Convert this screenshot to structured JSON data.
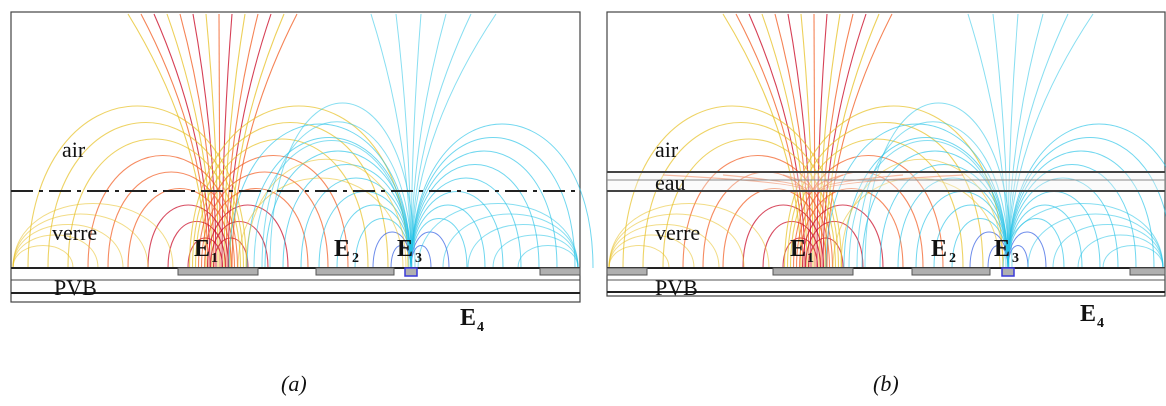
{
  "figure": {
    "panels": [
      {
        "id": "a",
        "caption": "(a)",
        "layers": [
          "air",
          "verre",
          "PVB"
        ],
        "electrodes": [
          {
            "letter": "E",
            "sub": "1"
          },
          {
            "letter": "E",
            "sub": "2"
          },
          {
            "letter": "E",
            "sub": "3"
          },
          {
            "letter": "E",
            "sub": "4"
          }
        ]
      },
      {
        "id": "b",
        "caption": "(b)",
        "layers": [
          "air",
          "eau",
          "verre",
          "PVB"
        ],
        "electrodes": [
          {
            "letter": "E",
            "sub": "1"
          },
          {
            "letter": "E",
            "sub": "2"
          },
          {
            "letter": "E",
            "sub": "3"
          },
          {
            "letter": "E",
            "sub": "4"
          }
        ]
      }
    ],
    "colors": {
      "hot_core": "#c8001e",
      "hot_mid": "#f25a1e",
      "warm": "#e7c023",
      "cool": "#24c2e6",
      "cool_core": "#1f4fe0",
      "layer_line": "#333333",
      "electrode": "#a9a9a9"
    }
  }
}
